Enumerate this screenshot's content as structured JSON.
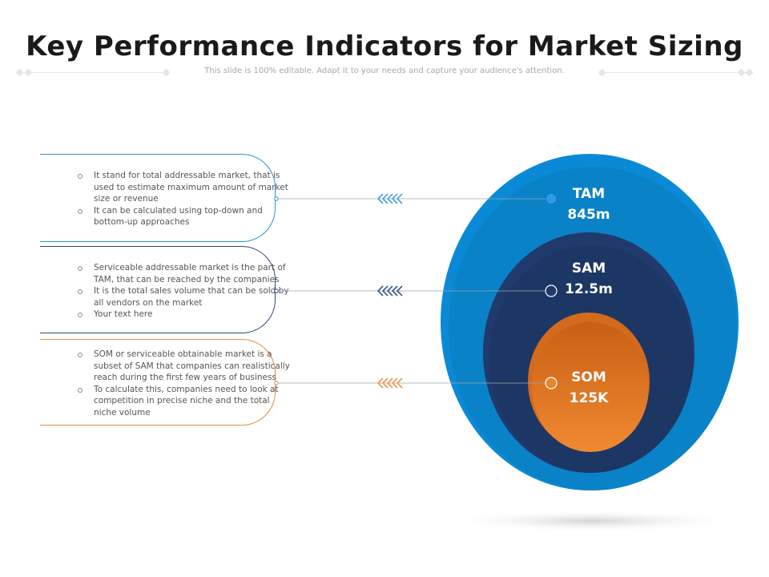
{
  "header": {
    "title": "Key Performance Indicators for Market Sizing",
    "subtitle": "This slide is 100% editable. Adapt it to your needs and capture your audience's attention."
  },
  "colors": {
    "tam": "#0a8ad6",
    "sam": "#1f3a6b",
    "som": "#e07a2a",
    "blue_outline": "#2b8fd6",
    "navy_outline": "#2e4a7a",
    "orange_outline": "#e8893a"
  },
  "panels": [
    {
      "id": "tam",
      "bullets": [
        "It stand for total addressable  market, that is used to estimate  maximum amount of market size or revenue",
        "It can be calculated using top-down and bottom-up approaches"
      ]
    },
    {
      "id": "sam",
      "bullets": [
        "Serviceable addressable  market is the part of TAM, that can be reached  by the companies",
        "It is the total sales  volume that can be sold by all vendors on the market",
        "Your text here"
      ]
    },
    {
      "id": "som",
      "bullets": [
        "SOM or serviceable  obtainable market  is a subset of SAM that companies can realistically reach during the first few years of business",
        "To calculate  this, companies need to look at competition in precise niche and the total niche volume"
      ]
    }
  ],
  "rings": {
    "tam": {
      "name": "TAM",
      "value": "845m"
    },
    "sam": {
      "name": "SAM",
      "value": "12.5m"
    },
    "som": {
      "name": "SOM",
      "value": "125K"
    }
  }
}
